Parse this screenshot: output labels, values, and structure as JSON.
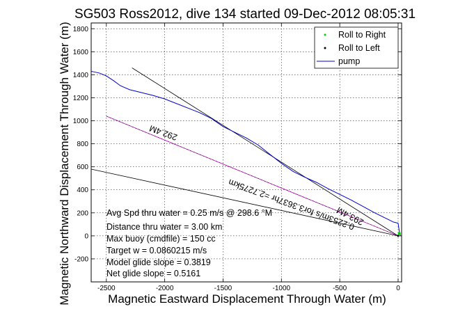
{
  "chart_data": {
    "type": "line",
    "title": "SG503 Ross2012, dive 134 started 09-Dec-2012 08:05:31",
    "xlabel": "Magnetic Eastward Displacement Through Water (m)",
    "ylabel": "Magnetic Northward Displacement Through Water (m)",
    "xlim": [
      -2630,
      30
    ],
    "ylim": [
      -400,
      1850
    ],
    "xticks": [
      "-2500",
      "-2000",
      "-1500",
      "-1000",
      "-500",
      "0"
    ],
    "yticks": [
      "-200",
      "0",
      "200",
      "400",
      "600",
      "800",
      "1000",
      "1200",
      "1400",
      "1600",
      "1800"
    ],
    "grid": true,
    "legend_position": "top-right",
    "legend": [
      {
        "label": "Roll to Right",
        "color": "#00cc00",
        "marker": "dot"
      },
      {
        "label": "Roll to Left",
        "color": "#000000",
        "marker": "dot"
      },
      {
        "label": "pump",
        "color": "#0000cc",
        "marker": "line"
      }
    ],
    "series": [
      {
        "name": "pump",
        "color": "#0000cc",
        "x": [
          -2630,
          -2560,
          -2500,
          -2440,
          -2380,
          -2300,
          -2200,
          -2100,
          -2000,
          -1900,
          -1800,
          -1700,
          -1600,
          -1500,
          -1400,
          -1300,
          -1200,
          -1100,
          -1000,
          -900,
          -800,
          -700,
          -600,
          -500,
          -400,
          -300,
          -200,
          -100,
          -40,
          0,
          10,
          20
        ],
        "y": [
          1430,
          1415,
          1390,
          1350,
          1305,
          1270,
          1245,
          1220,
          1190,
          1150,
          1110,
          1070,
          1020,
          950,
          900,
          850,
          790,
          710,
          630,
          560,
          510,
          465,
          410,
          360,
          310,
          255,
          200,
          150,
          120,
          110,
          40,
          0
        ]
      }
    ],
    "lines": [
      {
        "role": "course",
        "color": "#000000",
        "x": [
          -2280,
          0
        ],
        "y": [
          1460,
          0
        ]
      },
      {
        "role": "current",
        "color": "#000000",
        "x": [
          -2630,
          0
        ],
        "y": [
          580,
          0
        ]
      },
      {
        "role": "glide",
        "color": "#cc00cc",
        "x": [
          -2500,
          0
        ],
        "y": [
          1040,
          0
        ]
      },
      {
        "role": "glide-overlay",
        "color": "#000000",
        "x": [
          -2500,
          0
        ],
        "y": [
          1040,
          0
        ]
      }
    ],
    "annotations": {
      "line_label_1": "292.4M",
      "line_label_2": "0.2253m/s for3.3637hr =2.7275km",
      "line_label_3": "293.4M",
      "stats": [
        "Avg Spd thru water =  0.25 m/s @ 298.6 °M",
        "Distance thru water =  3.00 km",
        "Max buoy (cmdfile) = 150 cc",
        "Target w = 0.0860215 m/s",
        "Model glide slope = 0.3819",
        "Net glide slope = 0.5161"
      ]
    }
  }
}
